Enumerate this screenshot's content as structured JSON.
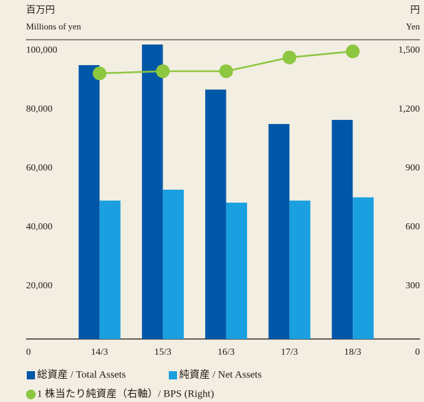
{
  "chart_data": {
    "type": "bar",
    "y_unit": "百万円",
    "y_label": "Millions of yen",
    "y2_unit": "円",
    "y2_label": "Yen",
    "categories": [
      "14/3",
      "15/3",
      "16/3",
      "17/3",
      "18/3"
    ],
    "series": [
      {
        "name": "総資産 / Total Assets",
        "color": "#0057a8",
        "values": [
          93000,
          100000,
          84700,
          73000,
          74400
        ]
      },
      {
        "name": "純資産 / Net Assets",
        "color": "#1a9fe0",
        "values": [
          47000,
          50700,
          46300,
          47000,
          48100
        ]
      },
      {
        "name": "1 株当たり純資産（右軸）/ BPS (Right)",
        "color": "#8dc63f",
        "type": "line",
        "axis": "y2",
        "values": [
          1353,
          1364,
          1364,
          1434,
          1465
        ]
      }
    ],
    "ylim": [
      0,
      100000
    ],
    "yticks": [
      0,
      {
        "value": 20000,
        "label": "20,000"
      },
      {
        "value": 40000,
        "label": "40,000"
      },
      {
        "value": 60000,
        "label": "60,000"
      },
      {
        "value": 80000,
        "label": "80,000"
      },
      {
        "value": 100000,
        "label": "100,000"
      }
    ],
    "y2lim": [
      0,
      1500
    ],
    "y2ticks": [
      0,
      300,
      600,
      900,
      {
        "value": 1200,
        "label": "1,200"
      },
      {
        "value": 1500,
        "label": "1,500"
      }
    ]
  }
}
